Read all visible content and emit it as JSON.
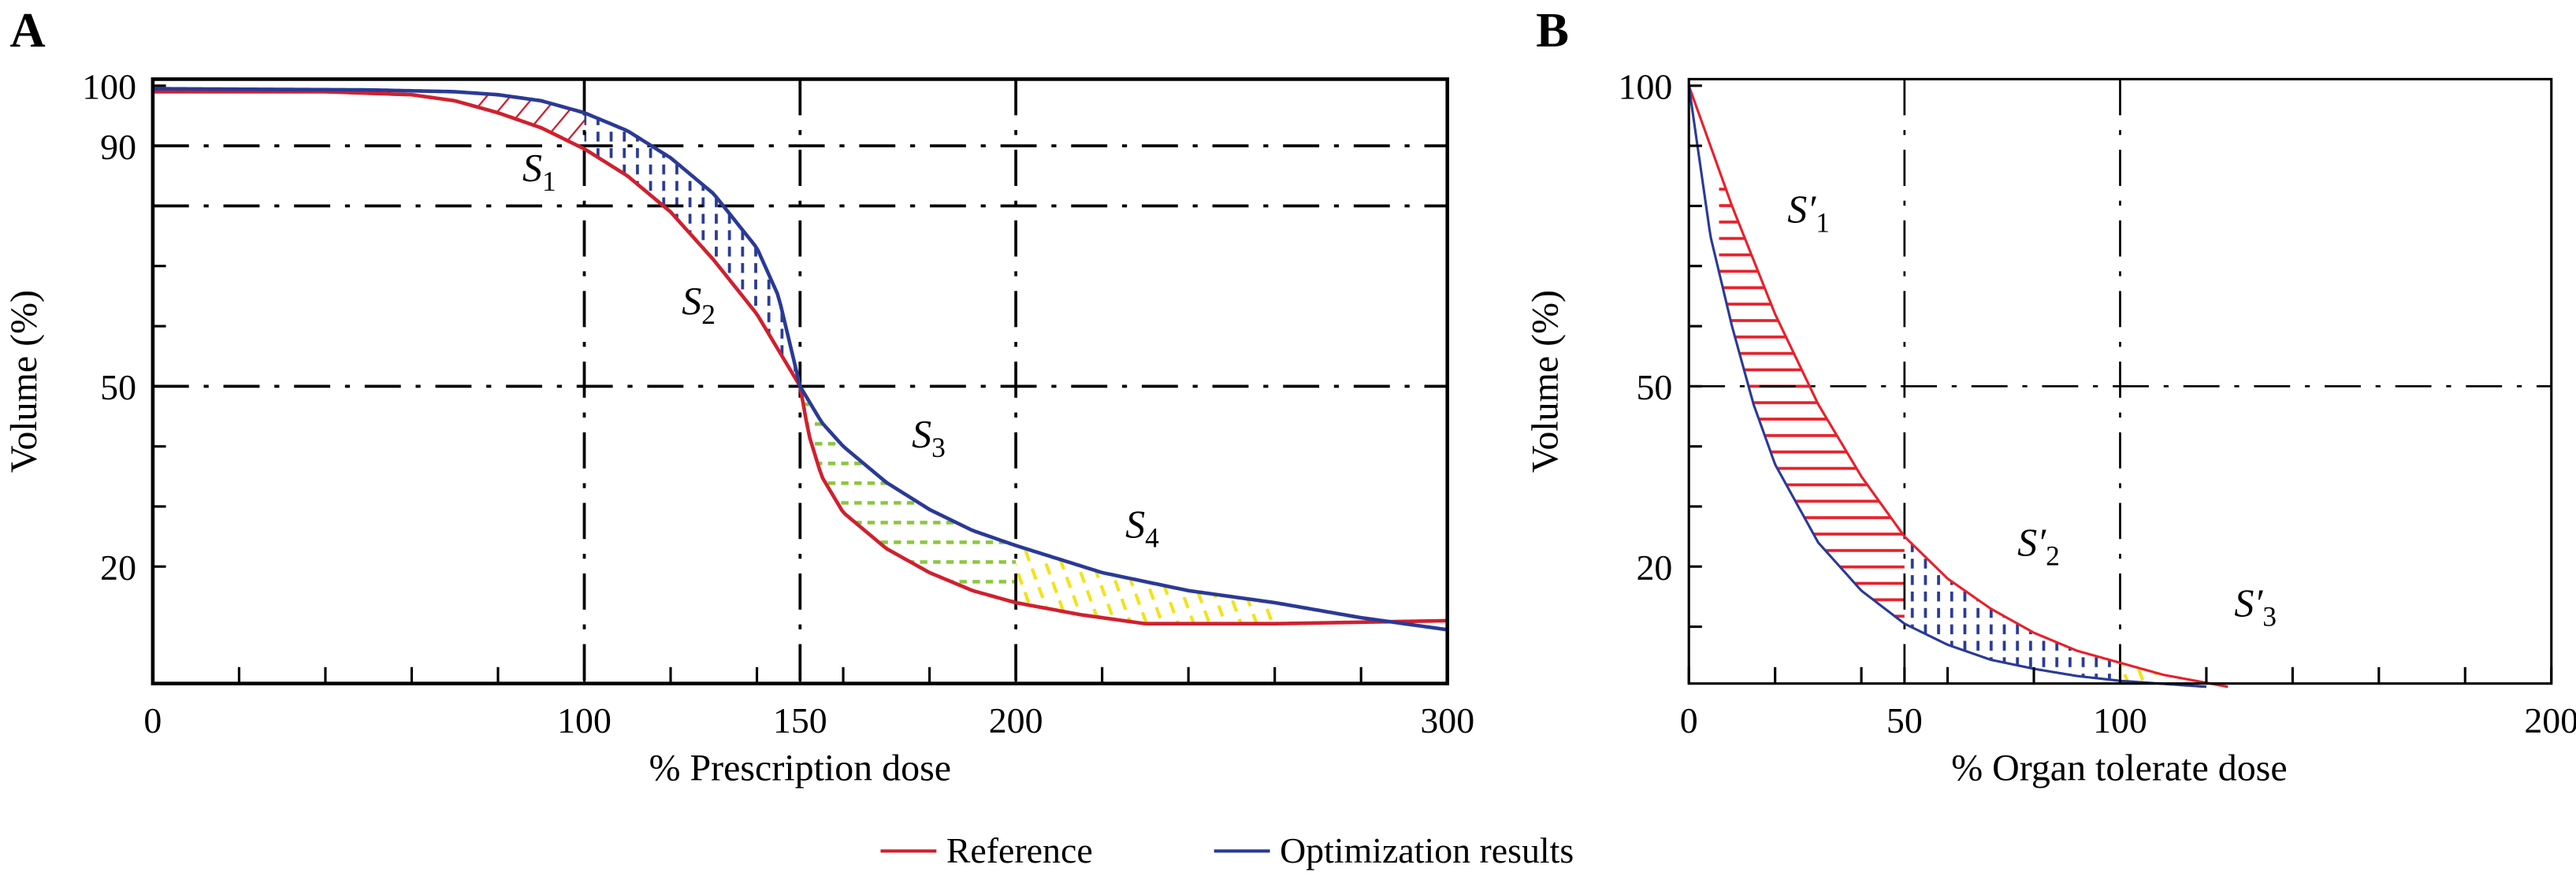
{
  "legend": {
    "items": [
      {
        "label": "Reference",
        "color": "#d0202e"
      },
      {
        "label": "Optimization results",
        "color": "#2a3a96"
      }
    ]
  },
  "chart_data": [
    {
      "panel": "A",
      "type": "line",
      "xlabel": "% Prescription dose",
      "ylabel": "Volume (%)",
      "xlim": [
        0,
        300
      ],
      "ylim": [
        0,
        100
      ],
      "xticklabels": [
        "0",
        "100",
        "150",
        "200",
        "300"
      ],
      "xtick_values": [
        0,
        100,
        150,
        200,
        300
      ],
      "yticklabels": [
        "100",
        "90",
        "50",
        "20"
      ],
      "ytick_values": [
        100,
        90,
        50,
        20
      ],
      "reference_lines": {
        "x": [
          100,
          150,
          200
        ],
        "y": [
          90,
          80,
          50
        ]
      },
      "series": [
        {
          "name": "Reference",
          "color": "#d0202e",
          "x": [
            0,
            40,
            60,
            70,
            80,
            90,
            100,
            110,
            120,
            130,
            140,
            145,
            150,
            152,
            155,
            160,
            170,
            180,
            190,
            200,
            215,
            230,
            260,
            300
          ],
          "y": [
            99,
            99,
            98.5,
            97.5,
            95.5,
            93,
            89.5,
            85,
            79,
            71,
            62,
            56,
            50,
            42,
            35,
            29,
            23,
            19,
            16,
            14,
            12,
            10.5,
            10.5,
            11
          ]
        },
        {
          "name": "Optimization results",
          "color": "#2a3a96",
          "x": [
            0,
            50,
            70,
            80,
            90,
            100,
            110,
            120,
            130,
            140,
            145,
            148,
            150,
            155,
            160,
            170,
            180,
            190,
            200,
            220,
            240,
            260,
            280,
            300
          ],
          "y": [
            99.5,
            99.3,
            99,
            98.5,
            97.5,
            95.5,
            92.5,
            88,
            82,
            73,
            65,
            56,
            50,
            44,
            40,
            34,
            29.5,
            26,
            23.5,
            19,
            16,
            14,
            11.5,
            9.5
          ]
        }
      ],
      "regions": [
        {
          "label": "S",
          "sub": "1",
          "from": 75,
          "to": 100,
          "pattern": "red-diagonal"
        },
        {
          "label": "S",
          "sub": "2",
          "from": 100,
          "to": 150,
          "pattern": "blue-vertical-dashed"
        },
        {
          "label": "S",
          "sub": "3",
          "from": 150,
          "to": 200,
          "pattern": "green-horizontal-dashed"
        },
        {
          "label": "S",
          "sub": "4",
          "from": 200,
          "to": 260,
          "pattern": "yellow-diagonal"
        }
      ]
    },
    {
      "panel": "B",
      "type": "line",
      "xlabel": "% Organ tolerate dose",
      "ylabel": "Volume (%)",
      "xlim": [
        0,
        200
      ],
      "ylim": [
        0,
        100
      ],
      "xticklabels": [
        "0",
        "50",
        "100",
        "200"
      ],
      "xtick_values": [
        0,
        50,
        100,
        200
      ],
      "yticklabels": [
        "100",
        "50",
        "20"
      ],
      "ytick_values": [
        100,
        50,
        20
      ],
      "reference_lines": {
        "x": [
          50,
          100
        ],
        "y": [
          50
        ]
      },
      "series": [
        {
          "name": "Reference",
          "color": "#e8202a",
          "x": [
            0,
            5,
            10,
            20,
            30,
            40,
            50,
            60,
            70,
            80,
            90,
            100,
            110,
            125
          ],
          "y": [
            100,
            90,
            80,
            62,
            47,
            35,
            25,
            18,
            13,
            9,
            6,
            4,
            2,
            0
          ]
        },
        {
          "name": "Optimization results",
          "color": "#2a3a96",
          "x": [
            0,
            5,
            10,
            15,
            20,
            30,
            40,
            50,
            60,
            70,
            80,
            90,
            100,
            110,
            120
          ],
          "y": [
            100,
            75,
            60,
            47,
            37,
            24,
            16,
            10.5,
            7,
            4.5,
            3,
            1.8,
            1,
            0.5,
            0
          ]
        }
      ],
      "regions": [
        {
          "label": "S′",
          "sub": "1",
          "from": 7,
          "to": 50,
          "pattern": "red-horizontal"
        },
        {
          "label": "S′",
          "sub": "2",
          "from": 50,
          "to": 100,
          "pattern": "blue-vertical-dashed"
        },
        {
          "label": "S′",
          "sub": "3",
          "from": 100,
          "to": 110,
          "pattern": "yellow-diagonal"
        }
      ]
    }
  ]
}
